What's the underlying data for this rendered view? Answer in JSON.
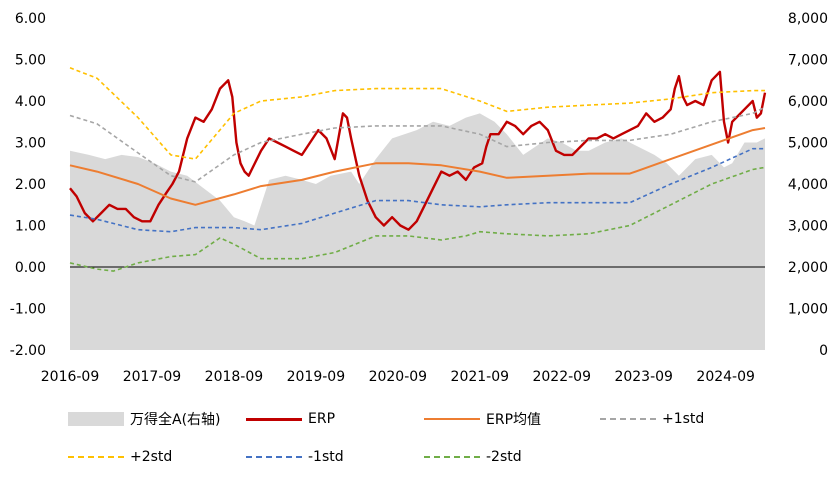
{
  "chart_data": {
    "type": "line",
    "x_ticks": [
      "2016-09",
      "2017-09",
      "2018-09",
      "2019-09",
      "2020-09",
      "2021-09",
      "2022-09",
      "2023-09",
      "2024-09"
    ],
    "y_left_ticks": [
      "6.00",
      "5.00",
      "4.00",
      "3.00",
      "2.00",
      "1.00",
      "0.00",
      "-1.00",
      "-2.00"
    ],
    "y_right_ticks": [
      "8,000",
      "7,000",
      "6,000",
      "5,000",
      "4,000",
      "3,000",
      "2,000",
      "1,000",
      "0"
    ],
    "ylim_left": [
      -2,
      6
    ],
    "ylim_right": [
      0,
      8000
    ],
    "series": [
      {
        "name": "万得全A(右轴)",
        "kind": "area",
        "axis": "right",
        "color": "#d9d9d9",
        "x": [
          2016.67,
          2016.9,
          2017.1,
          2017.3,
          2017.5,
          2017.7,
          2017.9,
          2018.1,
          2018.3,
          2018.5,
          2018.67,
          2018.8,
          2018.92,
          2019.1,
          2019.3,
          2019.5,
          2019.67,
          2019.85,
          2020.1,
          2020.2,
          2020.4,
          2020.6,
          2020.75,
          2020.9,
          2021.1,
          2021.3,
          2021.5,
          2021.67,
          2021.85,
          2022.0,
          2022.2,
          2022.35,
          2022.5,
          2022.67,
          2022.85,
          2023.0,
          2023.2,
          2023.4,
          2023.6,
          2023.8,
          2023.95,
          2024.1,
          2024.3,
          2024.5,
          2024.65,
          2024.75,
          2024.9,
          2025.05,
          2025.15
        ],
        "y": [
          4800,
          4700,
          4600,
          4700,
          4650,
          4500,
          4300,
          4200,
          3900,
          3600,
          3200,
          3100,
          3000,
          4100,
          4200,
          4100,
          4000,
          4200,
          4300,
          4000,
          4600,
          5100,
          5200,
          5300,
          5500,
          5400,
          5600,
          5700,
          5500,
          5200,
          4700,
          4900,
          5100,
          5000,
          4800,
          4800,
          5000,
          5100,
          4900,
          4700,
          4500,
          4200,
          4600,
          4700,
          4400,
          4500,
          5000,
          5000,
          5100
        ]
      },
      {
        "name": "ERP",
        "kind": "line",
        "axis": "left",
        "color": "#c00000",
        "x": [
          2016.67,
          2016.75,
          2016.85,
          2016.95,
          2017.05,
          2017.15,
          2017.25,
          2017.35,
          2017.45,
          2017.55,
          2017.65,
          2017.75,
          2017.85,
          2017.92,
          2018.0,
          2018.1,
          2018.2,
          2018.3,
          2018.4,
          2018.5,
          2018.6,
          2018.65,
          2018.7,
          2018.75,
          2018.8,
          2018.85,
          2018.9,
          2019.0,
          2019.1,
          2019.2,
          2019.3,
          2019.4,
          2019.5,
          2019.6,
          2019.7,
          2019.8,
          2019.9,
          2020.0,
          2020.05,
          2020.1,
          2020.2,
          2020.3,
          2020.4,
          2020.5,
          2020.6,
          2020.7,
          2020.8,
          2020.9,
          2021.0,
          2021.1,
          2021.2,
          2021.3,
          2021.4,
          2021.5,
          2021.6,
          2021.7,
          2021.75,
          2021.8,
          2021.9,
          2022.0,
          2022.1,
          2022.2,
          2022.3,
          2022.4,
          2022.5,
          2022.6,
          2022.7,
          2022.8,
          2022.9,
          2023.0,
          2023.1,
          2023.2,
          2023.3,
          2023.4,
          2023.5,
          2023.6,
          2023.7,
          2023.8,
          2023.9,
          2024.0,
          2024.05,
          2024.1,
          2024.15,
          2024.2,
          2024.3,
          2024.4,
          2024.5,
          2024.6,
          2024.65,
          2024.7,
          2024.75,
          2024.8,
          2024.9,
          2025.0,
          2025.05,
          2025.1,
          2025.15
        ],
        "y": [
          1.9,
          1.7,
          1.3,
          1.1,
          1.3,
          1.5,
          1.4,
          1.4,
          1.2,
          1.1,
          1.1,
          1.5,
          1.8,
          2.0,
          2.3,
          3.1,
          3.6,
          3.5,
          3.8,
          4.3,
          4.5,
          4.1,
          3.0,
          2.5,
          2.3,
          2.2,
          2.4,
          2.8,
          3.1,
          3.0,
          2.9,
          2.8,
          2.7,
          3.0,
          3.3,
          3.1,
          2.6,
          3.7,
          3.6,
          3.1,
          2.2,
          1.6,
          1.2,
          1.0,
          1.2,
          1.0,
          0.9,
          1.1,
          1.5,
          1.9,
          2.3,
          2.2,
          2.3,
          2.1,
          2.4,
          2.5,
          2.9,
          3.2,
          3.2,
          3.5,
          3.4,
          3.2,
          3.4,
          3.5,
          3.3,
          2.8,
          2.7,
          2.7,
          2.9,
          3.1,
          3.1,
          3.2,
          3.1,
          3.2,
          3.3,
          3.4,
          3.7,
          3.5,
          3.6,
          3.8,
          4.3,
          4.6,
          4.1,
          3.9,
          4.0,
          3.9,
          4.5,
          4.7,
          3.5,
          3.0,
          3.5,
          3.6,
          3.8,
          4.0,
          3.6,
          3.7,
          4.2
        ]
      },
      {
        "name": "ERP均值",
        "kind": "line",
        "axis": "left",
        "color": "#ed7d31",
        "x": [
          2016.67,
          2017.0,
          2017.5,
          2017.9,
          2018.2,
          2018.67,
          2019.0,
          2019.5,
          2019.9,
          2020.4,
          2020.8,
          2021.2,
          2021.67,
          2022.0,
          2022.5,
          2023.0,
          2023.5,
          2024.0,
          2024.5,
          2025.0,
          2025.15
        ],
        "y": [
          2.45,
          2.3,
          2.0,
          1.65,
          1.5,
          1.75,
          1.95,
          2.1,
          2.3,
          2.5,
          2.5,
          2.45,
          2.3,
          2.15,
          2.2,
          2.25,
          2.25,
          2.6,
          2.95,
          3.3,
          3.35
        ]
      },
      {
        "name": "+1std",
        "kind": "dashed",
        "axis": "left",
        "color": "#a6a6a6",
        "x": [
          2016.67,
          2017.0,
          2017.5,
          2017.9,
          2018.2,
          2018.67,
          2019.0,
          2019.5,
          2019.9,
          2020.4,
          2020.8,
          2021.2,
          2021.67,
          2022.0,
          2022.5,
          2023.0,
          2023.5,
          2024.0,
          2024.5,
          2025.0,
          2025.15
        ],
        "y": [
          3.65,
          3.45,
          2.75,
          2.2,
          2.05,
          2.7,
          3.0,
          3.2,
          3.35,
          3.4,
          3.4,
          3.4,
          3.2,
          2.9,
          3.0,
          3.05,
          3.05,
          3.2,
          3.5,
          3.7,
          3.85
        ]
      },
      {
        "name": "+2std",
        "kind": "dashed",
        "axis": "left",
        "color": "#ffc000",
        "x": [
          2016.67,
          2017.0,
          2017.5,
          2017.9,
          2018.2,
          2018.67,
          2019.0,
          2019.5,
          2019.9,
          2020.4,
          2020.8,
          2021.2,
          2021.67,
          2022.0,
          2022.5,
          2023.0,
          2023.5,
          2024.0,
          2024.5,
          2025.0,
          2025.15
        ],
        "y": [
          4.8,
          4.55,
          3.6,
          2.7,
          2.6,
          3.7,
          4.0,
          4.1,
          4.25,
          4.3,
          4.3,
          4.3,
          4.0,
          3.75,
          3.85,
          3.9,
          3.95,
          4.05,
          4.2,
          4.25,
          4.25
        ]
      },
      {
        "name": "-1std",
        "kind": "dashed",
        "axis": "left",
        "color": "#4472c4",
        "x": [
          2016.67,
          2017.0,
          2017.5,
          2017.9,
          2018.2,
          2018.67,
          2019.0,
          2019.5,
          2019.9,
          2020.4,
          2020.8,
          2021.2,
          2021.67,
          2022.0,
          2022.5,
          2023.0,
          2023.5,
          2024.0,
          2024.5,
          2025.0,
          2025.15
        ],
        "y": [
          1.25,
          1.15,
          0.9,
          0.85,
          0.95,
          0.95,
          0.9,
          1.05,
          1.3,
          1.6,
          1.6,
          1.5,
          1.45,
          1.5,
          1.55,
          1.55,
          1.55,
          2.0,
          2.4,
          2.85,
          2.85
        ]
      },
      {
        "name": "-2std",
        "kind": "dashed",
        "axis": "left",
        "color": "#70ad47",
        "x": [
          2016.67,
          2017.0,
          2017.2,
          2017.5,
          2017.9,
          2018.2,
          2018.5,
          2018.67,
          2019.0,
          2019.5,
          2019.9,
          2020.4,
          2020.8,
          2021.2,
          2021.5,
          2021.67,
          2022.0,
          2022.5,
          2023.0,
          2023.5,
          2024.0,
          2024.5,
          2025.0,
          2025.15
        ],
        "y": [
          0.1,
          -0.05,
          -0.1,
          0.1,
          0.25,
          0.3,
          0.7,
          0.55,
          0.2,
          0.2,
          0.35,
          0.75,
          0.75,
          0.65,
          0.75,
          0.85,
          0.8,
          0.75,
          0.8,
          1.0,
          1.5,
          2.0,
          2.35,
          2.4
        ]
      }
    ]
  }
}
